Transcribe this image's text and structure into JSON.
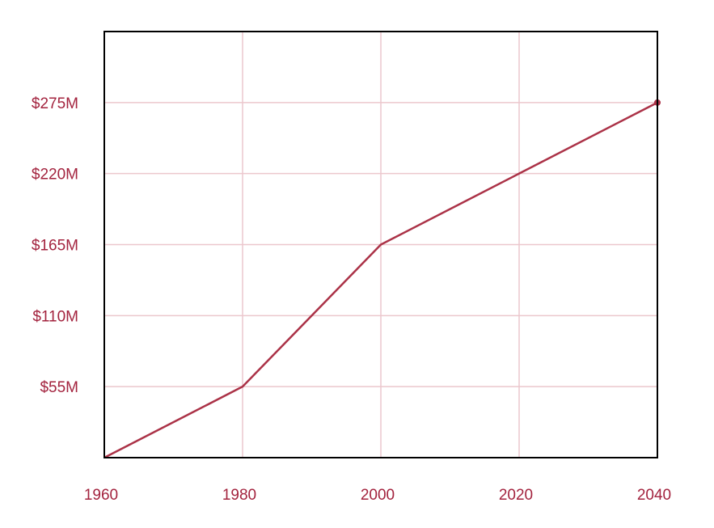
{
  "chart_data": {
    "type": "line",
    "title": "",
    "xlabel": "",
    "ylabel": "",
    "x": [
      1960,
      1980,
      2000,
      2020,
      2040
    ],
    "series": [
      {
        "values": [
          0,
          55,
          165,
          220,
          275
        ]
      }
    ],
    "xlim": [
      1960,
      2040
    ],
    "ylim": [
      0,
      330
    ],
    "xticks": [
      1960,
      1980,
      2000,
      2020,
      2040
    ],
    "xtick_labels": [
      "1960",
      "1980",
      "2000",
      "2020",
      "2040"
    ],
    "yticks": [
      55,
      110,
      165,
      220,
      275
    ],
    "ytick_labels": [
      "$55M",
      "$110M",
      "$165M",
      "$220M",
      "$275M"
    ],
    "grid": true,
    "legend": "none",
    "end_marker": true,
    "colors": {
      "line": "#ab3247",
      "tick_text": "#a3233e",
      "grid": "#ecc7cd",
      "frame": "#000000"
    }
  }
}
